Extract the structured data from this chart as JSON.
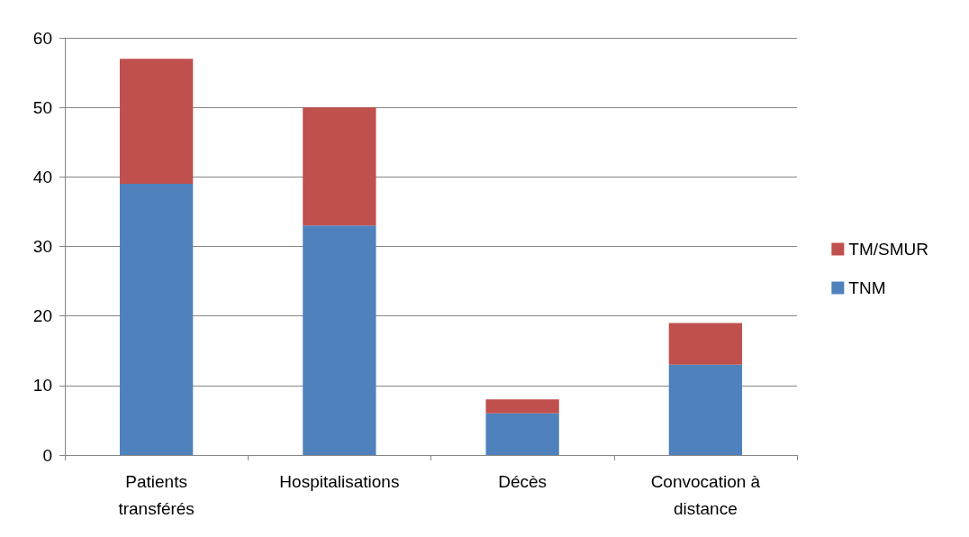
{
  "chart_data": {
    "type": "bar",
    "stacked": true,
    "categories": [
      "Patients transférés",
      "Hospitalisations",
      "Décès",
      "Convocation à distance"
    ],
    "series": [
      {
        "name": "TNM",
        "color": "#4f81bd",
        "values": [
          39,
          33,
          6,
          13
        ]
      },
      {
        "name": "TM/SMUR",
        "color": "#c0504d",
        "values": [
          18,
          17,
          2,
          6
        ]
      }
    ],
    "ylim": [
      0,
      60
    ],
    "yticks": [
      0,
      10,
      20,
      30,
      40,
      50,
      60
    ],
    "grid": "y",
    "legend": "right"
  }
}
